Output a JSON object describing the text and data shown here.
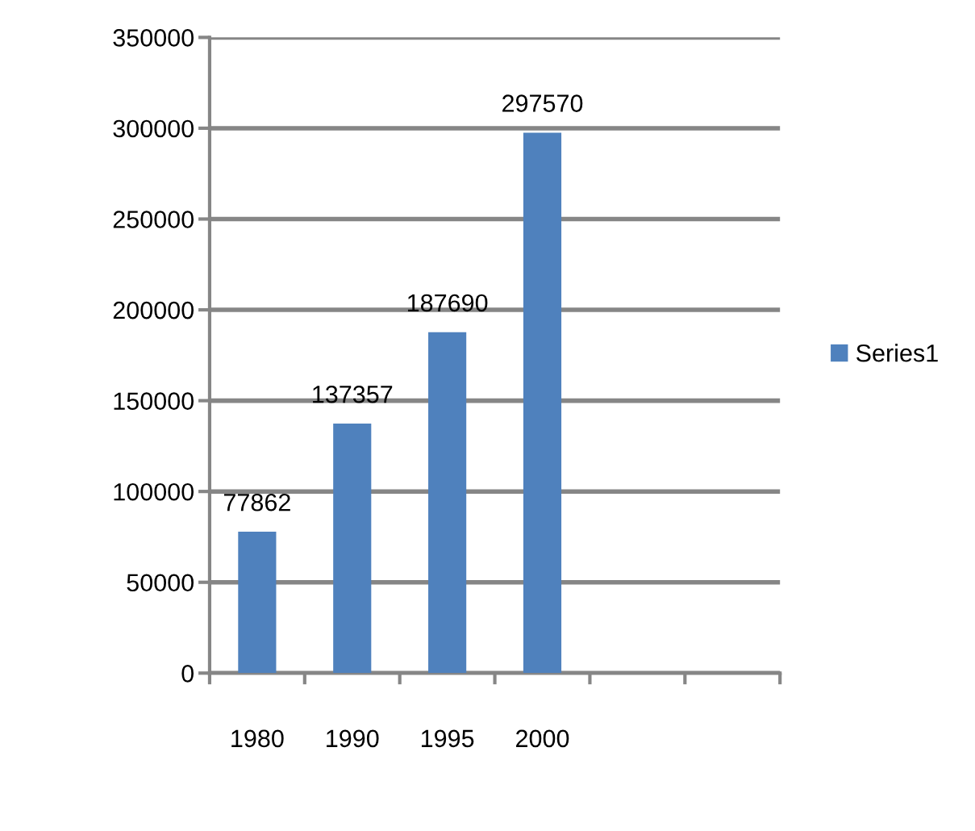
{
  "chart_data": {
    "type": "bar",
    "categories": [
      "1980",
      "1990",
      "1995",
      "2000",
      null,
      null
    ],
    "series": [
      {
        "name": "Series1",
        "color": "#4f81bd",
        "values": [
          77862,
          137357,
          187690,
          297570,
          null,
          null
        ]
      }
    ],
    "ylim": [
      0,
      350000
    ],
    "yticks": [
      0,
      50000,
      100000,
      150000,
      200000,
      250000,
      300000,
      350000
    ],
    "grid": "y",
    "legend": "right",
    "data_labels": true
  }
}
